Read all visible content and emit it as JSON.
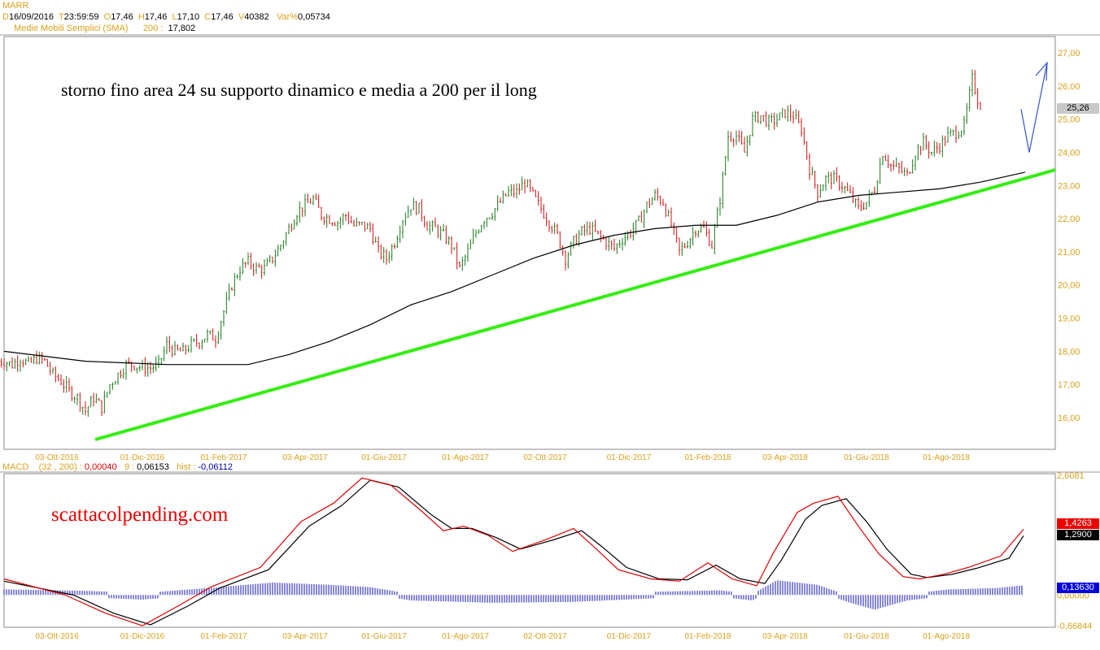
{
  "header": {
    "symbol": "MARR",
    "d_label": "D",
    "date": "16/09/2016",
    "t_label": "T",
    "time": "23:59:59",
    "o_label": "O",
    "open": "17,46",
    "h_label": "H",
    "high": "17,46",
    "l_label": "L",
    "low": "17,10",
    "c_label": "C",
    "close": "17,46",
    "v_label": "V",
    "volume": "40382",
    "var_label": "Var%",
    "var": "0,05734",
    "sma_label": "Medie Mobili Semplici (SMA)",
    "sma_period": "200 :",
    "sma_value": "17,802"
  },
  "macd_header": {
    "label": "MACD",
    "params": "(32 , 200) :",
    "macd": "0,00040",
    "signal_label": "9 :",
    "signal": "0,06153",
    "hist_label": "hist :",
    "hist": "-0,06112"
  },
  "annotations": {
    "main": "storno fino area 24 su supporto dinamico e media a 200 per il long",
    "watermark": "scattacolpending.com"
  },
  "colors": {
    "up": "#1a7a1a",
    "down": "#d01010",
    "sma": "#000000",
    "support": "#33ee11",
    "arrow": "#3355cc",
    "macd": "#e00000",
    "signal": "#000000",
    "hist": "#1010b0",
    "axis": "#d9a21b"
  },
  "chart_data": [
    {
      "type": "candlestick",
      "ylim": [
        15.3,
        27.4
      ],
      "y_ticks": [
        "27,00",
        "26,00",
        "25,00",
        "24,00",
        "23,00",
        "22,00",
        "21,00",
        "20,00",
        "19,00",
        "18,00",
        "17,00",
        "16,00"
      ],
      "x_ticks": [
        "03-Ott-2016",
        "01-Dic-2016",
        "01-Feb-2017",
        "03-Apr-2017",
        "01-Giu-2017",
        "01-Ago-2017",
        "02-Ott-2017",
        "01-Dic-2017",
        "01-Feb-2018",
        "03-Apr-2018",
        "01-Giu-2018",
        "01-Ago-2018"
      ],
      "last_price": "25,26",
      "closes": [
        17.7,
        17.6,
        17.8,
        17.6,
        17.8,
        17.7,
        17.3,
        17.1,
        16.8,
        16.6,
        16.2,
        16.6,
        16.3,
        17.0,
        17.3,
        17.6,
        17.6,
        17.5,
        17.5,
        17.6,
        18.2,
        18.0,
        18.0,
        18.2,
        18.3,
        18.5,
        18.4,
        19.2,
        20.0,
        20.5,
        20.7,
        20.5,
        20.5,
        20.8,
        21.2,
        21.7,
        22.2,
        22.4,
        22.6,
        22.1,
        22.0,
        21.9,
        22.1,
        21.8,
        21.8,
        21.7,
        21.0,
        20.8,
        21.3,
        22.0,
        22.4,
        22.3,
        21.8,
        21.7,
        21.5,
        21.2,
        20.5,
        21.0,
        21.6,
        22.0,
        22.2,
        22.5,
        22.8,
        22.8,
        23.1,
        22.7,
        22.3,
        21.9,
        21.5,
        20.8,
        21.3,
        21.6,
        21.7,
        21.5,
        21.3,
        21.1,
        21.4,
        21.6,
        21.9,
        22.4,
        22.7,
        22.5,
        21.8,
        21.0,
        21.3,
        21.7,
        21.7,
        21.2,
        22.6,
        24.5,
        24.5,
        24.0,
        25.0,
        25.1,
        24.9,
        25.0,
        25.2,
        25.1,
        24.7,
        23.5,
        22.8,
        23.2,
        23.2,
        23.0,
        22.7,
        22.3,
        22.5,
        22.9,
        24.0,
        23.6,
        23.5,
        23.3,
        24.0,
        24.3,
        24.0,
        24.2,
        24.5,
        24.6,
        24.8,
        26.2,
        25.3
      ],
      "sma200": [
        [
          0,
          18.0
        ],
        [
          10,
          17.7
        ],
        [
          20,
          17.6
        ],
        [
          30,
          17.6
        ],
        [
          35,
          17.9
        ],
        [
          40,
          18.3
        ],
        [
          45,
          18.8
        ],
        [
          50,
          19.4
        ],
        [
          55,
          19.8
        ],
        [
          60,
          20.3
        ],
        [
          65,
          20.8
        ],
        [
          70,
          21.2
        ],
        [
          75,
          21.5
        ],
        [
          80,
          21.7
        ],
        [
          85,
          21.8
        ],
        [
          90,
          21.8
        ],
        [
          95,
          22.1
        ],
        [
          100,
          22.5
        ],
        [
          105,
          22.7
        ],
        [
          110,
          22.8
        ],
        [
          115,
          22.9
        ],
        [
          120,
          23.1
        ],
        [
          125.5,
          23.4
        ]
      ],
      "support_line": [
        [
          11.2,
          15.34
        ],
        [
          129.2,
          23.47
        ]
      ],
      "forecast_arrow": [
        [
          125,
          25.3
        ],
        [
          126,
          24.0
        ],
        [
          128.2,
          26.7
        ]
      ]
    },
    {
      "type": "macd",
      "ylim": [
        -0.66844,
        2.6081
      ],
      "y_ticks": [
        "2,6081",
        "0,00000",
        "-0,66844"
      ],
      "last_values": {
        "macd": "1,4263",
        "signal": "1,2900",
        "hist": "0,13630"
      },
      "macd": [
        [
          0,
          0.35
        ],
        [
          7.5,
          0
        ],
        [
          12.5,
          -0.4
        ],
        [
          17,
          -0.67
        ],
        [
          21.5,
          -0.23
        ],
        [
          25.5,
          0.18
        ],
        [
          31.5,
          0.6
        ],
        [
          36.5,
          1.6
        ],
        [
          40.5,
          2.0
        ],
        [
          44,
          2.55
        ],
        [
          47.5,
          2.4
        ],
        [
          51.5,
          1.8
        ],
        [
          54,
          1.4
        ],
        [
          56.5,
          1.5
        ],
        [
          59.5,
          1.3
        ],
        [
          62.5,
          0.95
        ],
        [
          66.5,
          1.2
        ],
        [
          70,
          1.45
        ],
        [
          72.5,
          1.05
        ],
        [
          75.5,
          0.55
        ],
        [
          79.5,
          0.35
        ],
        [
          83,
          0.3
        ],
        [
          86.5,
          0.7
        ],
        [
          89.5,
          0.35
        ],
        [
          92.5,
          0.2
        ],
        [
          94.5,
          0.9
        ],
        [
          97.5,
          1.8
        ],
        [
          99.5,
          2.0
        ],
        [
          102.5,
          2.15
        ],
        [
          105,
          1.5
        ],
        [
          107.5,
          0.9
        ],
        [
          110.5,
          0.4
        ],
        [
          112.5,
          0.35
        ],
        [
          115.5,
          0.45
        ],
        [
          118.5,
          0.6
        ],
        [
          122.5,
          0.85
        ],
        [
          125.3,
          1.43
        ]
      ],
      "signal": [
        [
          0,
          0.3
        ],
        [
          8.5,
          0
        ],
        [
          13.5,
          -0.4
        ],
        [
          18,
          -0.65
        ],
        [
          22.5,
          -0.25
        ],
        [
          26.5,
          0.15
        ],
        [
          32.5,
          0.55
        ],
        [
          37.5,
          1.5
        ],
        [
          41.5,
          1.95
        ],
        [
          45,
          2.5
        ],
        [
          48.5,
          2.35
        ],
        [
          52.5,
          1.75
        ],
        [
          55,
          1.45
        ],
        [
          57.5,
          1.45
        ],
        [
          60.5,
          1.25
        ],
        [
          63.5,
          1.0
        ],
        [
          67.5,
          1.2
        ],
        [
          71,
          1.4
        ],
        [
          73.5,
          1.05
        ],
        [
          76.5,
          0.6
        ],
        [
          80.5,
          0.35
        ],
        [
          84,
          0.33
        ],
        [
          87.5,
          0.65
        ],
        [
          90.5,
          0.35
        ],
        [
          93.5,
          0.25
        ],
        [
          95.5,
          0.75
        ],
        [
          98.5,
          1.65
        ],
        [
          100.5,
          1.95
        ],
        [
          103.5,
          2.1
        ],
        [
          106,
          1.6
        ],
        [
          108.5,
          1.0
        ],
        [
          111.5,
          0.45
        ],
        [
          113.5,
          0.38
        ],
        [
          116.5,
          0.45
        ],
        [
          119.5,
          0.58
        ],
        [
          123.5,
          0.8
        ],
        [
          125.3,
          1.29
        ]
      ],
      "hist": [
        [
          0,
          0.05
        ],
        [
          10,
          0.02
        ],
        [
          17,
          -0.03
        ],
        [
          25,
          0.08
        ],
        [
          33,
          0.2
        ],
        [
          40,
          0.15
        ],
        [
          45,
          0.1
        ],
        [
          50,
          -0.05
        ],
        [
          60,
          -0.1
        ],
        [
          70,
          -0.08
        ],
        [
          80,
          0.0
        ],
        [
          88,
          0.03
        ],
        [
          92,
          -0.05
        ],
        [
          95,
          0.25
        ],
        [
          100,
          0.15
        ],
        [
          104,
          -0.1
        ],
        [
          107,
          -0.25
        ],
        [
          111,
          -0.05
        ],
        [
          116,
          0.05
        ],
        [
          122,
          0.08
        ],
        [
          125.3,
          0.14
        ]
      ]
    }
  ]
}
